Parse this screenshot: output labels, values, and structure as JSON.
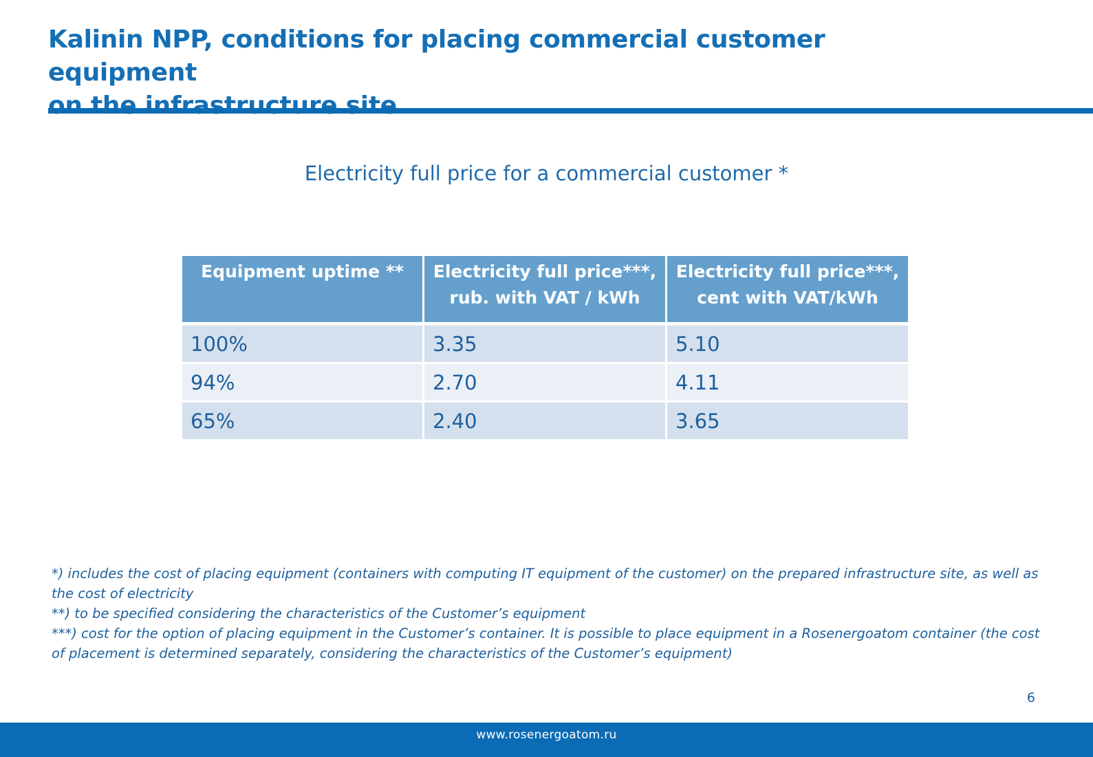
{
  "slide": {
    "title_line1": "Kalinin NPP, conditions for placing commercial customer equipment",
    "title_line2": "on the infrastructure site",
    "subtitle": "Electricity full price for a commercial customer *",
    "page_number": "6"
  },
  "table": {
    "headers": {
      "col1": "Equipment uptime **",
      "col2_line1": "Electricity full price***,",
      "col2_line2": "rub. with VAT / kWh",
      "col3_line1": "Electricity full price***,",
      "col3_line2": "cent  with VAT/kWh"
    },
    "rows": [
      {
        "uptime": "100%",
        "rub": "3.35",
        "cent": "5.10"
      },
      {
        "uptime": "94%",
        "rub": "2.70",
        "cent": "4.11"
      },
      {
        "uptime": "65%",
        "rub": "2.40",
        "cent": "3.65"
      }
    ]
  },
  "footnotes": {
    "note1": "*) includes the cost of placing equipment (containers with computing IT equipment of the customer) on the prepared infrastructure site, as well as the cost of electricity",
    "note2": "**) to be specified considering the characteristics of the Customer’s equipment",
    "note3": "***) cost for the option of placing equipment in the Customer’s container. It is possible to place equipment in a Rosenergoatom container (the cost of placement is determined separately, considering the characteristics of the Customer’s equipment)"
  },
  "footer": {
    "url": "www.rosenergoatom.ru"
  },
  "colors": {
    "brand_blue": "#0b6bb5",
    "header_fill": "#65a0cd",
    "row_dark": "#d4e0ed",
    "row_light": "#ebf0f7"
  }
}
